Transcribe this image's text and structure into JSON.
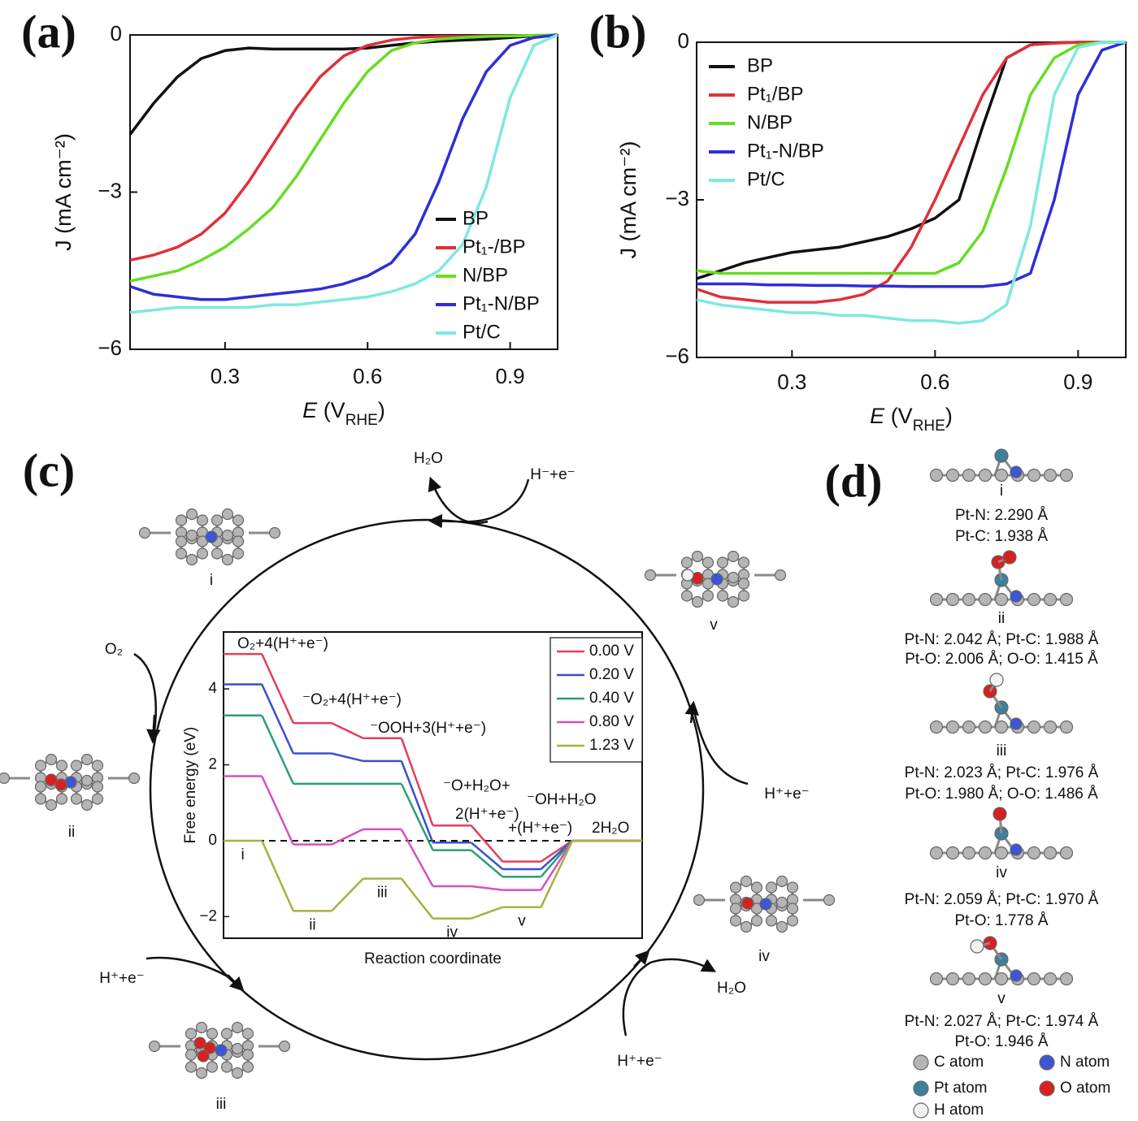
{
  "chart_data": [
    {
      "type": "line",
      "panel": "(a)",
      "x": [
        0.1,
        0.15,
        0.2,
        0.25,
        0.3,
        0.35,
        0.4,
        0.45,
        0.5,
        0.55,
        0.6,
        0.65,
        0.7,
        0.75,
        0.8,
        0.85,
        0.9,
        0.95,
        1.0
      ],
      "series": [
        {
          "name": "BP",
          "color": "#111111",
          "values": [
            -1.9,
            -1.3,
            -0.8,
            -0.45,
            -0.3,
            -0.25,
            -0.27,
            -0.27,
            -0.27,
            -0.27,
            -0.25,
            -0.2,
            -0.15,
            -0.12,
            -0.1,
            -0.08,
            -0.05,
            -0.02,
            0
          ]
        },
        {
          "name": "Pt₁-/BP",
          "color": "#e0303a",
          "values": [
            -4.3,
            -4.2,
            -4.05,
            -3.8,
            -3.4,
            -2.8,
            -2.1,
            -1.4,
            -0.8,
            -0.4,
            -0.2,
            -0.1,
            -0.05,
            -0.03,
            -0.03,
            -0.02,
            -0.02,
            -0.01,
            0
          ]
        },
        {
          "name": "N/BP",
          "color": "#66dd22",
          "values": [
            -4.7,
            -4.6,
            -4.5,
            -4.3,
            -4.05,
            -3.7,
            -3.3,
            -2.7,
            -2.0,
            -1.3,
            -0.7,
            -0.3,
            -0.15,
            -0.08,
            -0.05,
            -0.03,
            -0.02,
            -0.01,
            0
          ]
        },
        {
          "name": "Pt₁-N/BP",
          "color": "#2e2ed6",
          "values": [
            -4.8,
            -4.95,
            -5.0,
            -5.05,
            -5.05,
            -5.0,
            -4.95,
            -4.9,
            -4.85,
            -4.75,
            -4.6,
            -4.35,
            -3.8,
            -2.8,
            -1.6,
            -0.7,
            -0.2,
            -0.05,
            0
          ]
        },
        {
          "name": "Pt/C",
          "color": "#7fe8df",
          "values": [
            -5.3,
            -5.25,
            -5.2,
            -5.2,
            -5.2,
            -5.2,
            -5.15,
            -5.15,
            -5.1,
            -5.05,
            -5.0,
            -4.9,
            -4.75,
            -4.5,
            -4.0,
            -2.9,
            -1.2,
            -0.2,
            0
          ]
        }
      ],
      "xlim": [
        0.1,
        1.0
      ],
      "ylim": [
        -6,
        0
      ],
      "xticks": [
        0.3,
        0.6,
        0.9
      ],
      "yticks": [
        0,
        {
          "value": -3,
          "label": "−3"
        },
        {
          "value": -6,
          "label": "−6"
        }
      ],
      "x_label": [
        "E",
        " (V",
        "RHE",
        ")"
      ],
      "y_label": "J (mA cm⁻²)",
      "legend": "lower right"
    },
    {
      "type": "line",
      "panel": "(b)",
      "x": [
        0.1,
        0.15,
        0.2,
        0.25,
        0.3,
        0.35,
        0.4,
        0.45,
        0.5,
        0.55,
        0.6,
        0.65,
        0.7,
        0.75,
        0.8,
        0.85,
        0.9,
        0.95,
        1.0
      ],
      "series": [
        {
          "name": "BP",
          "color": "#111111",
          "values": [
            -4.5,
            -4.35,
            -4.2,
            -4.1,
            -4.0,
            -3.95,
            -3.9,
            -3.8,
            -3.7,
            -3.55,
            -3.35,
            -3.0,
            -1.6,
            -0.3,
            -0.05,
            -0.01,
            0,
            0,
            0
          ]
        },
        {
          "name": "Pt₁/BP",
          "color": "#e0303a",
          "values": [
            -4.7,
            -4.85,
            -4.9,
            -4.95,
            -4.95,
            -4.95,
            -4.9,
            -4.8,
            -4.55,
            -3.9,
            -3.0,
            -2.0,
            -1.0,
            -0.3,
            -0.05,
            -0.02,
            0,
            0,
            0
          ]
        },
        {
          "name": "N/BP",
          "color": "#66dd22",
          "values": [
            -4.35,
            -4.4,
            -4.4,
            -4.4,
            -4.4,
            -4.4,
            -4.4,
            -4.4,
            -4.4,
            -4.4,
            -4.4,
            -4.2,
            -3.6,
            -2.4,
            -1.0,
            -0.3,
            -0.05,
            0,
            0
          ]
        },
        {
          "name": "Pt₁-N/BP",
          "color": "#2e2ed6",
          "values": [
            -4.6,
            -4.6,
            -4.6,
            -4.62,
            -4.62,
            -4.63,
            -4.63,
            -4.64,
            -4.64,
            -4.65,
            -4.65,
            -4.65,
            -4.65,
            -4.6,
            -4.4,
            -3.0,
            -1.0,
            -0.15,
            0
          ]
        },
        {
          "name": "Pt/C",
          "color": "#7fe8df",
          "values": [
            -4.9,
            -5.0,
            -5.05,
            -5.1,
            -5.15,
            -5.15,
            -5.2,
            -5.2,
            -5.25,
            -5.3,
            -5.3,
            -5.35,
            -5.3,
            -5.0,
            -3.5,
            -1.0,
            -0.1,
            0,
            0
          ]
        }
      ],
      "xlim": [
        0.1,
        1.0
      ],
      "ylim": [
        -6,
        0
      ],
      "xticks": [
        0.3,
        0.6,
        0.9
      ],
      "yticks": [
        0,
        {
          "value": -3,
          "label": "−3"
        },
        {
          "value": -6,
          "label": "−6"
        }
      ],
      "x_label": [
        "E",
        " (V",
        "RHE",
        ")"
      ],
      "y_label": "J (mA cm⁻²)",
      "legend": "upper left"
    },
    {
      "type": "step",
      "panel": "(c)",
      "categories": [
        "i",
        "ii",
        "iii",
        "iv",
        "v",
        null
      ],
      "series": [
        {
          "name": "0.00 V",
          "color": "#e0405a",
          "values": [
            4.92,
            3.1,
            2.7,
            0.4,
            -0.55,
            0
          ]
        },
        {
          "name": "0.20 V",
          "color": "#3a4fd0",
          "values": [
            4.12,
            2.3,
            2.1,
            -0.05,
            -0.75,
            0
          ]
        },
        {
          "name": "0.40 V",
          "color": "#2e9c7a",
          "values": [
            3.3,
            1.5,
            1.5,
            -0.25,
            -0.95,
            0
          ]
        },
        {
          "name": "0.80 V",
          "color": "#d84fc0",
          "values": [
            1.7,
            -0.1,
            0.3,
            -1.2,
            -1.3,
            0
          ]
        },
        {
          "name": "1.23 V",
          "color": "#a8b040",
          "values": [
            0,
            -1.85,
            -1.0,
            -2.05,
            -1.75,
            0
          ]
        }
      ],
      "ylim": [
        -2.57,
        5.5
      ],
      "yticks": [
        {
          "value": -2,
          "label": "−2"
        },
        0,
        2,
        4
      ],
      "reference_line": 0,
      "x_label": "Reaction coordinate",
      "y_label": "Free energy (eV)",
      "legend": "upper right",
      "annotations": [
        "O₂+4(H⁺+e⁻)",
        "⁻O₂+4(H⁺+e⁻)",
        "⁻OOH+3(H⁺+e⁻)",
        "⁻O+H₂O+",
        "⁻OH+H₂O",
        "2(H⁺+e⁻)",
        "+(H⁺+e⁻)",
        "2H₂O"
      ]
    }
  ],
  "cycle": {
    "labels": [
      "H₂O",
      "H⁻+e⁻",
      "i",
      "v",
      "O₂",
      "ii",
      "H⁺+e⁻",
      "iv",
      "H⁺+e⁻",
      "H₂O",
      "H⁺+e⁻",
      "iii"
    ]
  },
  "panel_d": {
    "label": "(d)",
    "structures": [
      {
        "name": "i",
        "lines": [
          "Pt-N: 2.290 Å",
          "Pt-C: 1.938 Å"
        ]
      },
      {
        "name": "ii",
        "lines": [
          "Pt-N: 2.042 Å; Pt-C: 1.988 Å",
          "Pt-O: 2.006 Å; O-O: 1.415 Å"
        ]
      },
      {
        "name": "iii",
        "lines": [
          "Pt-N: 2.023 Å; Pt-C: 1.976 Å",
          "Pt-O: 1.980 Å; O-O: 1.486 Å"
        ]
      },
      {
        "name": "iv",
        "lines": [
          "Pt-N: 2.059 Å; Pt-C: 1.970 Å",
          "Pt-O: 1.778 Å"
        ]
      },
      {
        "name": "v",
        "lines": [
          "Pt-N: 2.027 Å; Pt-C: 1.974 Å",
          "Pt-O: 1.946 Å"
        ]
      }
    ],
    "legend": [
      "C atom",
      "N atom",
      "Pt atom",
      "O atom",
      "H atom"
    ]
  }
}
